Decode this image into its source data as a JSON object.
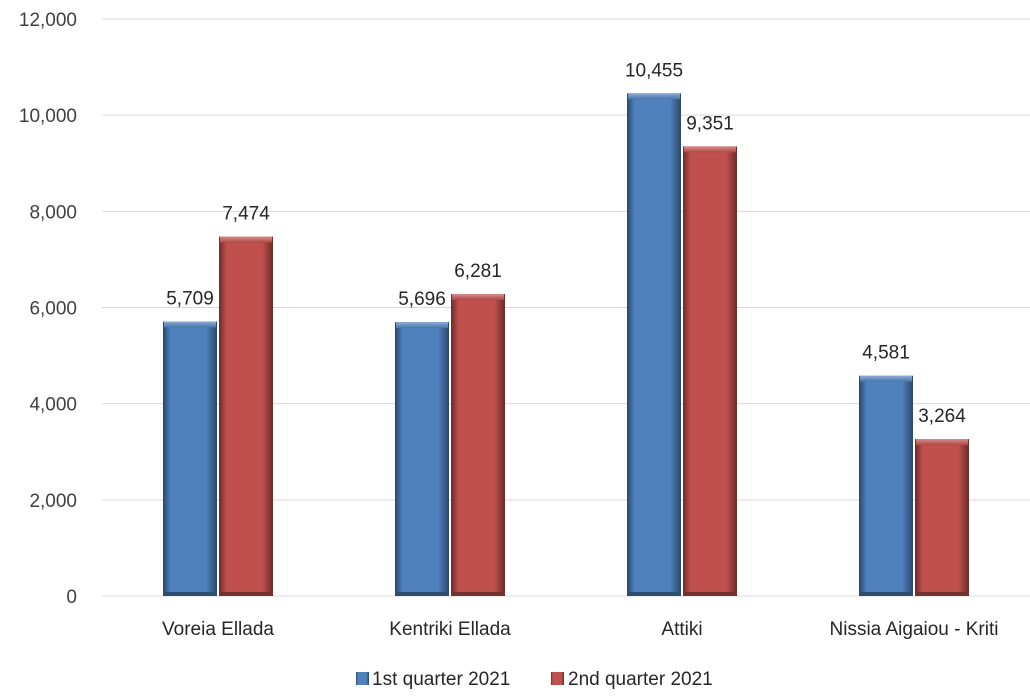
{
  "chart_data": {
    "type": "bar",
    "title": "",
    "xlabel": "",
    "ylabel": "",
    "categories": [
      "Voreia Ellada",
      "Kentriki Ellada",
      "Attiki",
      "Nissia Aigaiou - Kriti"
    ],
    "series": [
      {
        "name": "1st quarter 2021",
        "values": [
          5709,
          5696,
          10455,
          4581
        ],
        "value_labels": [
          "5,709",
          "5,696",
          "10,455",
          "4,581"
        ],
        "color": "#4F81BD"
      },
      {
        "name": "2nd quarter 2021",
        "values": [
          7474,
          6281,
          9351,
          3264
        ],
        "value_labels": [
          "7,474",
          "6,281",
          "9,351",
          "3,264"
        ],
        "color": "#C0504D"
      }
    ],
    "ylim": [
      0,
      12000
    ],
    "yticks": [
      0,
      2000,
      4000,
      6000,
      8000,
      10000,
      12000
    ],
    "ytick_labels": [
      "0",
      "2,000",
      "4,000",
      "6,000",
      "8,000",
      "10,000",
      "12,000"
    ],
    "grid": true,
    "legend_position": "bottom"
  }
}
